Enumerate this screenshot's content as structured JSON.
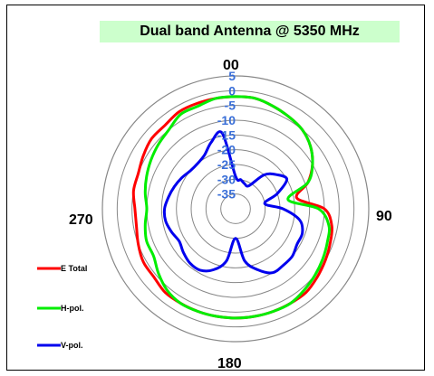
{
  "chart_data": {
    "type": "polar-line",
    "title": "Dual band Antenna @ 5350 MHz",
    "angle_labels": [
      "00",
      "90",
      "180",
      "270"
    ],
    "radial_axis": {
      "ticks": [
        "5",
        "0",
        "-5",
        "-10",
        "-15",
        "-20",
        "-25",
        "-30",
        "-35"
      ],
      "min": -40,
      "max": 5
    },
    "angle_step_deg": 10,
    "series": [
      {
        "name": "E Total",
        "color": "#ff0000",
        "values": [
          -2,
          -2,
          -3,
          -4,
          -5,
          -7,
          -10,
          -14,
          -19,
          -10,
          -7,
          -6,
          -5,
          -4,
          -3,
          -3,
          -3,
          -3,
          -3,
          -3,
          -3,
          -3,
          -3,
          -4,
          -4,
          -5,
          -6,
          -6,
          -5,
          -5,
          -4,
          -3,
          -3,
          -2,
          -2,
          -2
        ]
      },
      {
        "name": "H-pol.",
        "color": "#00ee00",
        "values": [
          -2,
          -2,
          -3,
          -4,
          -5,
          -7,
          -10,
          -14,
          -22,
          -12,
          -8,
          -7,
          -6,
          -5,
          -4,
          -3,
          -3,
          -3,
          -3,
          -3,
          -3,
          -3,
          -4,
          -6,
          -8,
          -8,
          -9,
          -10,
          -9,
          -8,
          -7,
          -6,
          -5,
          -3,
          -3,
          -2
        ]
      },
      {
        "name": "V-pol.",
        "color": "#0000ee",
        "values": [
          -29,
          -30,
          -31,
          -31,
          -25,
          -22,
          -20,
          -25,
          -30,
          -24,
          -18,
          -16,
          -16,
          -15,
          -15,
          -15,
          -18,
          -22,
          -30,
          -22,
          -18,
          -16,
          -16,
          -17,
          -18,
          -17,
          -16,
          -16,
          -17,
          -18,
          -19,
          -20,
          -20,
          -19,
          -16,
          -14
        ]
      }
    ]
  }
}
